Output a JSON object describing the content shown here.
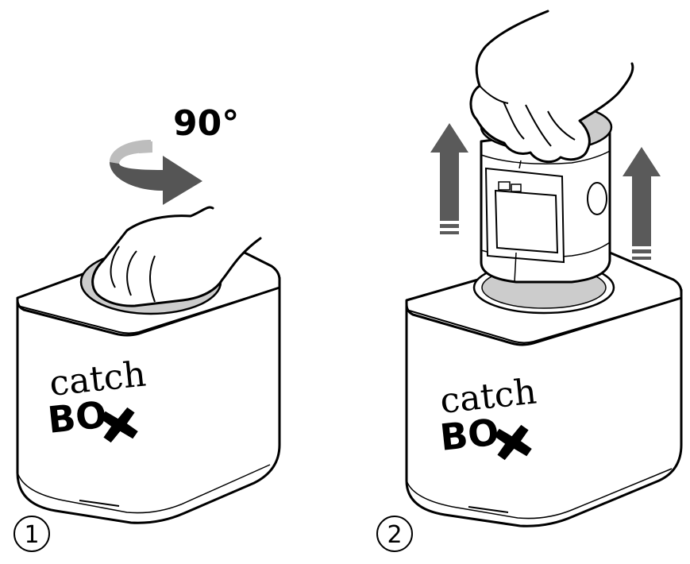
{
  "rotation_label": "90°",
  "logo": {
    "line1": "catch",
    "line2": "BOX"
  },
  "steps": [
    {
      "number": "1"
    },
    {
      "number": "2"
    }
  ],
  "colors": {
    "arrow": "#5a5a5a",
    "outline": "#000000",
    "surface": "#ffffff",
    "cap": "#cccccc",
    "rotation_arrow_light": "#bdbdbd",
    "rotation_arrow_dark": "#555555"
  },
  "icons": {
    "rotate": "rotate-arrow-icon",
    "lift": "up-arrow-icon",
    "logo_mark": "x-blob-icon"
  }
}
